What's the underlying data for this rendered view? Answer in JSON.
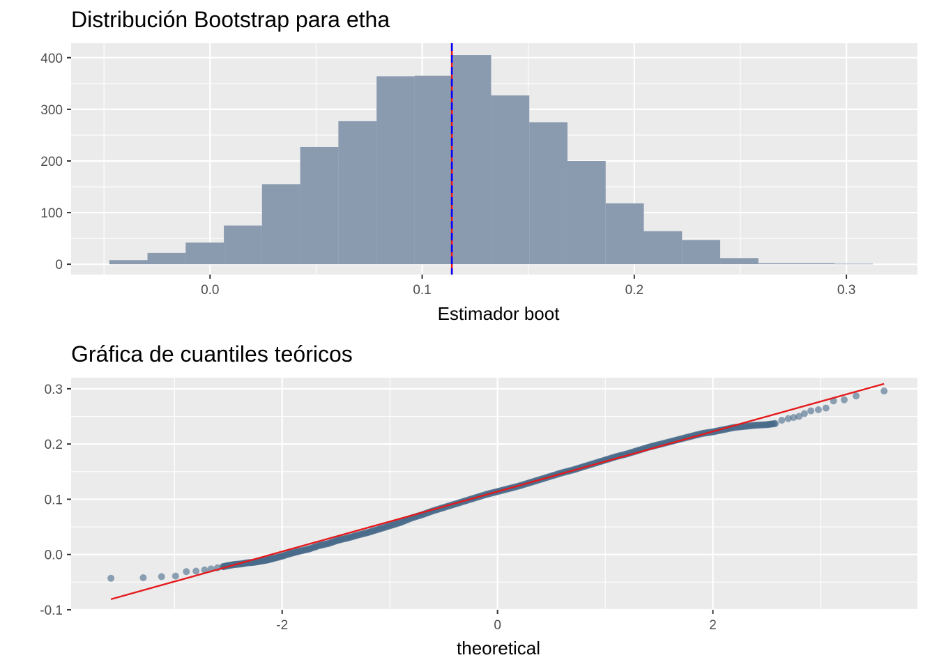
{
  "chart_data": [
    {
      "type": "bar",
      "title": "Distribución Bootstrap para etha",
      "xlabel": "Estimador boot",
      "ylabel": "",
      "xlim": [
        -0.0655,
        0.3335
      ],
      "ylim": [
        -20,
        428
      ],
      "xticks": [
        0.0,
        0.1,
        0.2,
        0.3
      ],
      "xtick_labels": [
        "0.0",
        "0.1",
        "0.2",
        "0.3"
      ],
      "yticks": [
        0,
        100,
        200,
        300,
        400
      ],
      "ytick_labels": [
        "0",
        "100",
        "200",
        "300",
        "400"
      ],
      "bin_width": 0.018,
      "bin_starts": [
        -0.0475,
        -0.0295,
        -0.0115,
        0.0065,
        0.0245,
        0.0425,
        0.0605,
        0.0785,
        0.0965,
        0.1145,
        0.1325,
        0.1505,
        0.1685,
        0.1865,
        0.2045,
        0.2225,
        0.2405,
        0.2585,
        0.2765,
        0.2945
      ],
      "values": [
        8,
        22,
        42,
        75,
        155,
        227,
        277,
        364,
        365,
        405,
        327,
        275,
        200,
        118,
        64,
        47,
        12,
        2,
        2,
        1
      ],
      "fill": "#8a9bb0",
      "vlines": [
        {
          "x": 0.114,
          "color": "#e41a1c",
          "style": "solid"
        },
        {
          "x": 0.114,
          "color": "#0000ff",
          "style": "dashed"
        }
      ],
      "grid": true
    },
    {
      "type": "scatter",
      "title": "Gráfica de cuantiles teóricos",
      "xlabel": "theoretical",
      "ylabel": "",
      "xlim": [
        -3.96,
        3.9
      ],
      "ylim": [
        -0.1,
        0.32
      ],
      "xticks": [
        -2,
        0,
        2
      ],
      "xtick_labels": [
        "-2",
        "0",
        "2"
      ],
      "yticks": [
        -0.1,
        0.0,
        0.1,
        0.2,
        0.3
      ],
      "ytick_labels": [
        "-0.1",
        "0.0",
        "0.1",
        "0.2",
        "0.3"
      ],
      "point_color": "#4a6b8a",
      "points": [
        [
          -3.59,
          -0.043
        ],
        [
          -3.29,
          -0.042
        ],
        [
          -3.12,
          -0.04
        ],
        [
          -2.99,
          -0.039
        ],
        [
          -2.89,
          -0.031
        ],
        [
          -2.8,
          -0.03
        ],
        [
          -2.72,
          -0.028
        ],
        [
          -2.66,
          -0.026
        ],
        [
          -2.6,
          -0.024
        ],
        [
          -2.55,
          -0.022
        ],
        [
          -2.5,
          -0.02
        ],
        [
          -2.44,
          -0.018
        ],
        [
          -2.38,
          -0.017
        ],
        [
          -2.32,
          -0.015
        ],
        [
          -2.26,
          -0.014
        ],
        [
          -2.2,
          -0.012
        ],
        [
          -2.14,
          -0.01
        ],
        [
          -2.08,
          -0.007
        ],
        [
          -2.0,
          -0.003
        ],
        [
          -1.92,
          0.002
        ],
        [
          -1.84,
          0.006
        ],
        [
          -1.75,
          0.01
        ],
        [
          -1.66,
          0.016
        ],
        [
          -1.57,
          0.02
        ],
        [
          -1.48,
          0.026
        ],
        [
          -1.39,
          0.03
        ],
        [
          -1.3,
          0.035
        ],
        [
          -1.2,
          0.04
        ],
        [
          -1.1,
          0.046
        ],
        [
          -1.0,
          0.052
        ],
        [
          -0.9,
          0.058
        ],
        [
          -0.8,
          0.066
        ],
        [
          -0.7,
          0.072
        ],
        [
          -0.6,
          0.079
        ],
        [
          -0.5,
          0.085
        ],
        [
          -0.4,
          0.091
        ],
        [
          -0.3,
          0.097
        ],
        [
          -0.2,
          0.103
        ],
        [
          -0.1,
          0.109
        ],
        [
          0.0,
          0.114
        ],
        [
          0.1,
          0.119
        ],
        [
          0.2,
          0.124
        ],
        [
          0.3,
          0.13
        ],
        [
          0.4,
          0.136
        ],
        [
          0.5,
          0.142
        ],
        [
          0.6,
          0.148
        ],
        [
          0.7,
          0.153
        ],
        [
          0.8,
          0.159
        ],
        [
          0.9,
          0.165
        ],
        [
          1.0,
          0.171
        ],
        [
          1.1,
          0.177
        ],
        [
          1.2,
          0.182
        ],
        [
          1.3,
          0.188
        ],
        [
          1.4,
          0.194
        ],
        [
          1.5,
          0.199
        ],
        [
          1.6,
          0.204
        ],
        [
          1.7,
          0.209
        ],
        [
          1.8,
          0.214
        ],
        [
          1.9,
          0.219
        ],
        [
          2.0,
          0.222
        ],
        [
          2.1,
          0.226
        ],
        [
          2.2,
          0.23
        ],
        [
          2.3,
          0.232
        ],
        [
          2.4,
          0.234
        ],
        [
          2.5,
          0.235
        ],
        [
          2.58,
          0.237
        ],
        [
          2.64,
          0.243
        ],
        [
          2.7,
          0.246
        ],
        [
          2.75,
          0.248
        ],
        [
          2.8,
          0.25
        ],
        [
          2.85,
          0.255
        ],
        [
          2.91,
          0.26
        ],
        [
          2.98,
          0.262
        ],
        [
          3.05,
          0.265
        ],
        [
          3.12,
          0.278
        ],
        [
          3.22,
          0.28
        ],
        [
          3.33,
          0.287
        ],
        [
          3.59,
          0.296
        ]
      ],
      "line": {
        "slope": 0.0543,
        "intercept": 0.114,
        "x_range": [
          -3.59,
          3.59
        ],
        "color": "#e41a1c"
      },
      "grid": true
    }
  ]
}
